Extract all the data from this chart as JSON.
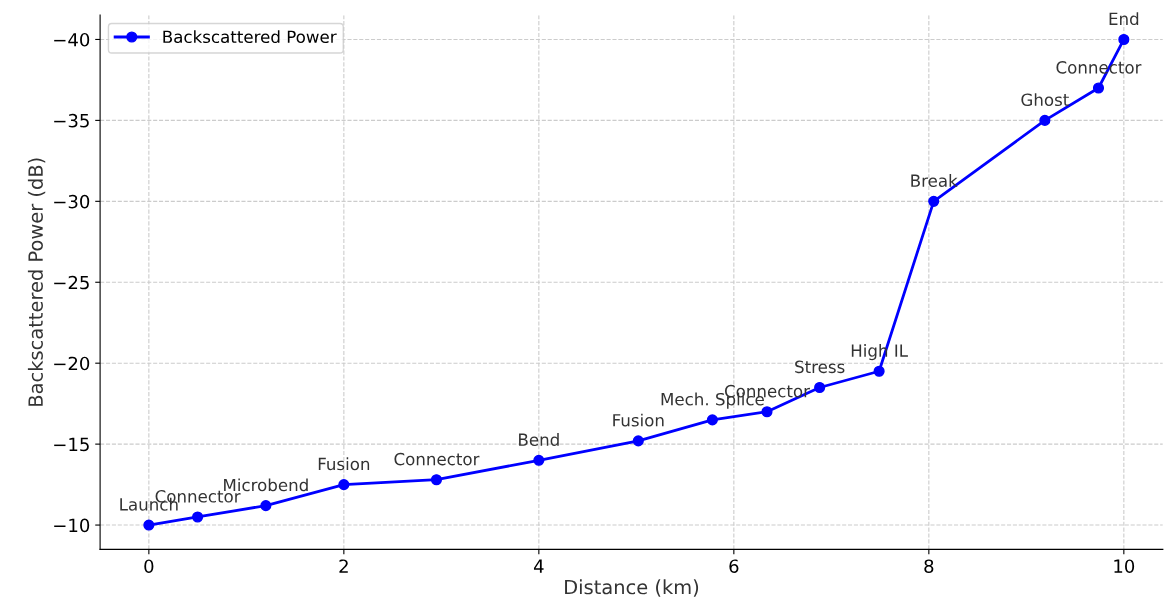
{
  "chart_data": {
    "type": "line",
    "xlabel": "Distance (km)",
    "ylabel": "Backscattered Power (dB)",
    "x": [
      0,
      0.5,
      1.2,
      2.0,
      2.95,
      4.0,
      5.02,
      5.78,
      6.34,
      6.88,
      7.49,
      8.05,
      9.19,
      9.74,
      10
    ],
    "series": [
      {
        "name": "Backscattered Power",
        "color": "#0000ff",
        "values": [
          -10,
          -10.5,
          -11.2,
          -12.5,
          -12.8,
          -14.0,
          -15.2,
          -16.5,
          -17.0,
          -18.5,
          -19.5,
          -30.0,
          -35.0,
          -37.0,
          -40.0
        ]
      }
    ],
    "annotations": [
      {
        "text": "Launch",
        "x": 0,
        "y": -10
      },
      {
        "text": "Connector",
        "x": 0.5,
        "y": -10.5
      },
      {
        "text": "Microbend",
        "x": 1.2,
        "y": -11.2
      },
      {
        "text": "Fusion",
        "x": 2.0,
        "y": -12.5
      },
      {
        "text": "Connector",
        "x": 2.95,
        "y": -12.8
      },
      {
        "text": "Bend",
        "x": 4.0,
        "y": -14.0
      },
      {
        "text": "Fusion",
        "x": 5.02,
        "y": -15.2
      },
      {
        "text": "Mech. Splice",
        "x": 5.78,
        "y": -16.5
      },
      {
        "text": "Connector",
        "x": 6.34,
        "y": -17.0
      },
      {
        "text": "Stress",
        "x": 6.88,
        "y": -18.5
      },
      {
        "text": "High IL",
        "x": 7.49,
        "y": -19.5
      },
      {
        "text": "Break",
        "x": 8.05,
        "y": -30.0
      },
      {
        "text": "Ghost",
        "x": 9.19,
        "y": -35.0
      },
      {
        "text": "Connector",
        "x": 9.74,
        "y": -37.0
      },
      {
        "text": "End",
        "x": 10,
        "y": -40.0
      }
    ],
    "xlim": [
      -0.5,
      10.4
    ],
    "ylim": [
      -8.5,
      -41.5
    ],
    "xticks": [
      0,
      2,
      4,
      6,
      8,
      10
    ],
    "yticks": [
      -10,
      -15,
      -20,
      -25,
      -30,
      -35,
      -40
    ],
    "grid": true,
    "legend": "top left",
    "marker": "circle",
    "line_style": "solid"
  }
}
